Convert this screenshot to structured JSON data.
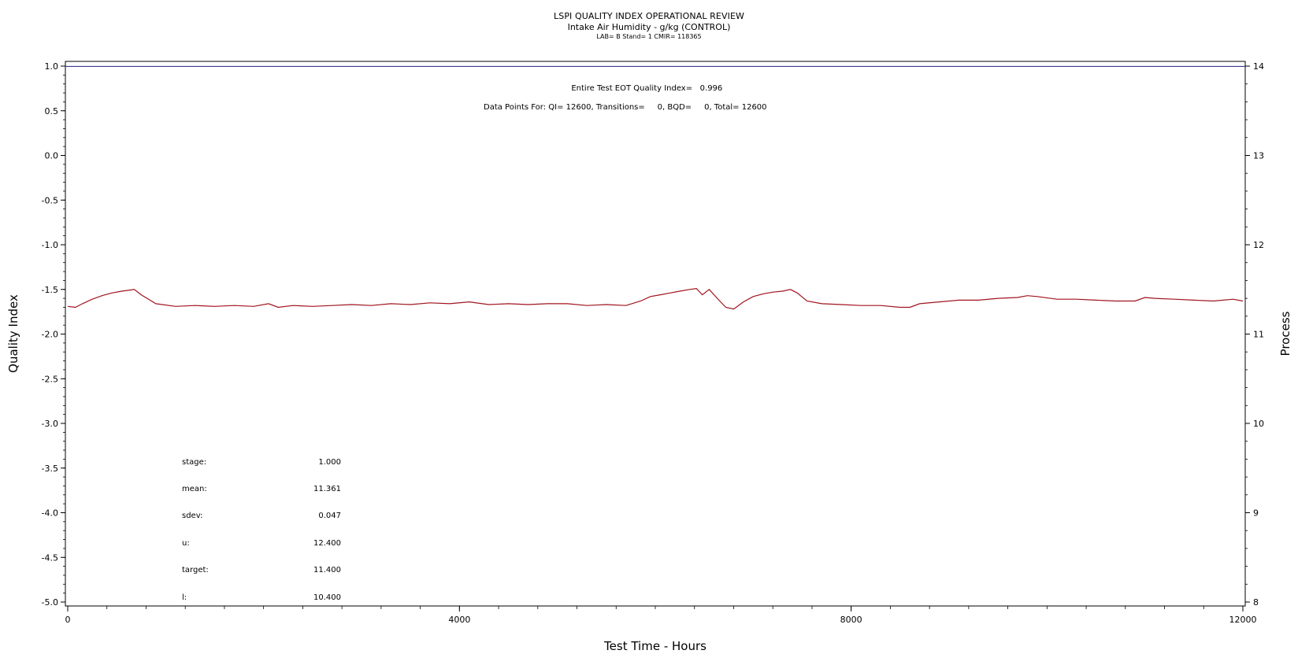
{
  "header": {
    "title": "LSPI QUALITY INDEX OPERATIONAL REVIEW",
    "subtitle": "Intake Air Humidity - g/kg (CONTROL)",
    "meta": "LAB= B Stand= 1 CMIR= 118365"
  },
  "annotations": {
    "eot_label": "Entire Test EOT Quality Index=",
    "eot_value": "0.996",
    "points": "Data Points For: QI= 12600, Transitions=     0, BQD=     0, Total= 12600"
  },
  "stats": [
    {
      "label": "stage:",
      "value": "1.000"
    },
    {
      "label": "mean:",
      "value": "11.361"
    },
    {
      "label": "sdev:",
      "value": "0.047"
    },
    {
      "label": "u:",
      "value": "12.400"
    },
    {
      "label": "target:",
      "value": "11.400"
    },
    {
      "label": "l:",
      "value": "10.400"
    }
  ],
  "chart_data": {
    "type": "line",
    "title": "LSPI QUALITY INDEX OPERATIONAL REVIEW",
    "xlabel": "Test Time - Hours",
    "ylabel": "Quality Index",
    "y2label": "Process",
    "xlim": [
      0,
      12000
    ],
    "ylim": [
      -5.0,
      1.0
    ],
    "y2lim": [
      8,
      14
    ],
    "x_ticks": [
      0,
      4000,
      8000,
      12000
    ],
    "y_ticks": [
      1.0,
      0.5,
      0.0,
      -0.5,
      -1.0,
      -1.5,
      -2.0,
      -2.5,
      -3.0,
      -3.5,
      -4.0,
      -4.5,
      -5.0
    ],
    "y_tick_labels": [
      "1.0",
      "0.5",
      "0.0",
      "-0.5",
      "-1.0",
      "-1.5",
      "-2.0",
      "-2.5",
      "-3.0",
      "-3.5",
      "-4.0",
      "-4.5",
      "-5.0"
    ],
    "y2_ticks": [
      8,
      9,
      10,
      11,
      12,
      13,
      14
    ],
    "reference_line": {
      "y": 0.996,
      "color": "#3b3b8f"
    },
    "grid": false,
    "series": [
      {
        "color": "#a0141e",
        "x": [
          0,
          80,
          150,
          250,
          350,
          450,
          550,
          620,
          680,
          750,
          900,
          1100,
          1300,
          1500,
          1700,
          1900,
          2050,
          2150,
          2300,
          2500,
          2700,
          2900,
          3100,
          3300,
          3500,
          3700,
          3900,
          4100,
          4300,
          4500,
          4700,
          4900,
          5100,
          5300,
          5500,
          5700,
          5850,
          5950,
          6050,
          6150,
          6250,
          6350,
          6420,
          6480,
          6550,
          6650,
          6720,
          6800,
          6900,
          7000,
          7100,
          7200,
          7300,
          7380,
          7450,
          7550,
          7700,
          7900,
          8100,
          8300,
          8500,
          8600,
          8700,
          8900,
          9100,
          9300,
          9500,
          9700,
          9800,
          9900,
          10100,
          10300,
          10500,
          10700,
          10900,
          11000,
          11100,
          11300,
          11500,
          11700,
          11900,
          12000
        ],
        "y": [
          -1.69,
          -1.7,
          -1.66,
          -1.61,
          -1.57,
          -1.54,
          -1.52,
          -1.51,
          -1.5,
          -1.56,
          -1.66,
          -1.69,
          -1.68,
          -1.69,
          -1.68,
          -1.69,
          -1.66,
          -1.7,
          -1.68,
          -1.69,
          -1.68,
          -1.67,
          -1.68,
          -1.66,
          -1.67,
          -1.65,
          -1.66,
          -1.64,
          -1.67,
          -1.66,
          -1.67,
          -1.66,
          -1.66,
          -1.68,
          -1.67,
          -1.68,
          -1.63,
          -1.58,
          -1.56,
          -1.54,
          -1.52,
          -1.5,
          -1.49,
          -1.56,
          -1.5,
          -1.62,
          -1.7,
          -1.72,
          -1.64,
          -1.58,
          -1.55,
          -1.53,
          -1.52,
          -1.5,
          -1.54,
          -1.63,
          -1.66,
          -1.67,
          -1.68,
          -1.68,
          -1.7,
          -1.7,
          -1.66,
          -1.64,
          -1.62,
          -1.62,
          -1.6,
          -1.59,
          -1.57,
          -1.58,
          -1.61,
          -1.61,
          -1.62,
          -1.63,
          -1.63,
          -1.59,
          -1.6,
          -1.61,
          -1.62,
          -1.63,
          -1.61,
          -1.63
        ]
      }
    ]
  }
}
